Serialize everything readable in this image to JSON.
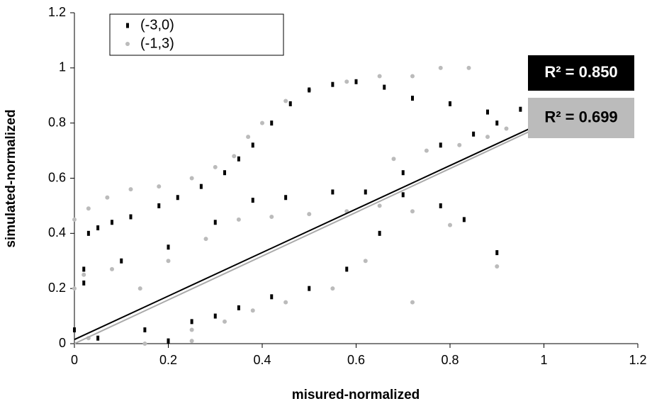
{
  "chart_data": {
    "type": "scatter",
    "x_label": "misured-normalized",
    "y_label": "simulated-normalized",
    "xlim": [
      0,
      1.2
    ],
    "ylim": [
      0,
      1.2
    ],
    "xticks": [
      0,
      0.2,
      0.4,
      0.6,
      0.8,
      1,
      1.2
    ],
    "yticks": [
      0,
      0.2,
      0.4,
      0.6,
      0.8,
      1,
      1.2
    ],
    "grid": false,
    "legend": "top-left",
    "series": [
      {
        "name": "(-3,0)",
        "color": "#000000",
        "marker": "square",
        "x": [
          0.02,
          0.03,
          0.05,
          0.08,
          0.12,
          0.18,
          0.22,
          0.27,
          0.32,
          0.35,
          0.38,
          0.42,
          0.46,
          0.5,
          0.55,
          0.6,
          0.66,
          0.72,
          0.8,
          0.88,
          0.02,
          0.1,
          0.2,
          0.3,
          0.38,
          0.45,
          0.55,
          0.62,
          0.7,
          0.78,
          0.83,
          0.3,
          0.35,
          0.42,
          0.5,
          0.58,
          0.65,
          0.7,
          0.78,
          0.85,
          0.9,
          0.95,
          0.9,
          0.05,
          0.15,
          0.25,
          0.2,
          0.0
        ],
        "y": [
          0.27,
          0.4,
          0.42,
          0.44,
          0.46,
          0.5,
          0.53,
          0.57,
          0.62,
          0.67,
          0.72,
          0.8,
          0.87,
          0.92,
          0.94,
          0.95,
          0.93,
          0.89,
          0.87,
          0.84,
          0.22,
          0.3,
          0.35,
          0.44,
          0.52,
          0.53,
          0.55,
          0.55,
          0.54,
          0.5,
          0.45,
          0.1,
          0.13,
          0.17,
          0.2,
          0.27,
          0.4,
          0.62,
          0.72,
          0.76,
          0.8,
          0.85,
          0.33,
          0.02,
          0.05,
          0.08,
          0.01,
          0.05
        ],
        "trendline": {
          "x": [
            0,
            0.97
          ],
          "y": [
            0.015,
            0.78
          ],
          "label": "R² = 0.850"
        }
      },
      {
        "name": "(-1,3)",
        "color": "#bbbbbb",
        "marker": "circle",
        "x": [
          0.03,
          0.07,
          0.12,
          0.18,
          0.25,
          0.3,
          0.34,
          0.37,
          0.4,
          0.45,
          0.5,
          0.58,
          0.65,
          0.72,
          0.78,
          0.84,
          0.02,
          0.08,
          0.14,
          0.2,
          0.28,
          0.35,
          0.42,
          0.5,
          0.58,
          0.65,
          0.72,
          0.8,
          0.68,
          0.75,
          0.82,
          0.88,
          0.92,
          0.25,
          0.32,
          0.38,
          0.45,
          0.55,
          0.62,
          0.72,
          0.9,
          0.15,
          0.25,
          0.0,
          0.0,
          0.03
        ],
        "y": [
          0.49,
          0.53,
          0.56,
          0.57,
          0.6,
          0.64,
          0.68,
          0.75,
          0.8,
          0.88,
          0.92,
          0.95,
          0.97,
          0.97,
          1.0,
          1.0,
          0.25,
          0.27,
          0.2,
          0.3,
          0.38,
          0.45,
          0.46,
          0.47,
          0.48,
          0.5,
          0.48,
          0.43,
          0.67,
          0.7,
          0.72,
          0.75,
          0.78,
          0.05,
          0.08,
          0.12,
          0.15,
          0.2,
          0.3,
          0.15,
          0.28,
          0.0,
          0.01,
          0.2,
          0.45,
          0.02
        ],
        "trendline": {
          "x": [
            0,
            0.97
          ],
          "y": [
            0.0,
            0.77
          ],
          "label": "R² = 0.699"
        }
      }
    ]
  }
}
